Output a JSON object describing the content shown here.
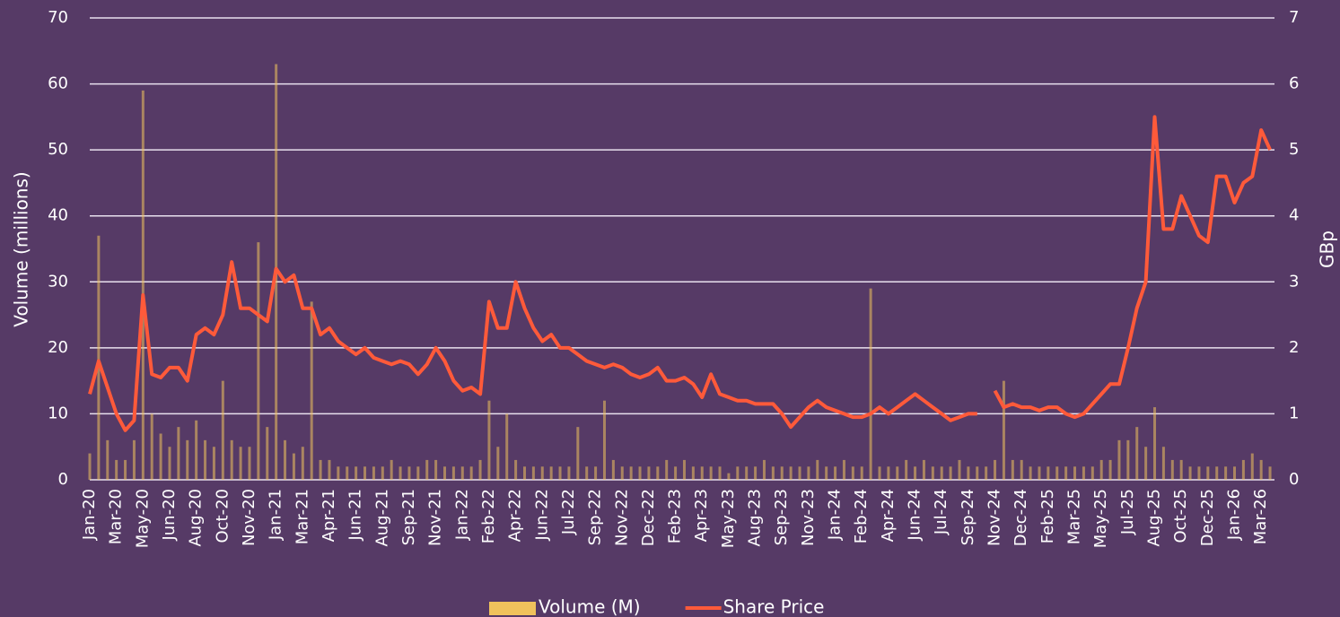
{
  "chart_data": {
    "type": "bar-line",
    "y_label": "Volume (millions)",
    "y2_label": "GBp",
    "categories": [
      "Jan-20",
      null,
      null,
      "Mar-20",
      null,
      null,
      "May-20",
      null,
      null,
      "Jun-20",
      null,
      null,
      "Aug-20",
      null,
      null,
      "Oct-20",
      null,
      null,
      "Nov-20",
      null,
      null,
      "Jan-21",
      null,
      null,
      "Mar-21",
      null,
      null,
      "Apr-21",
      null,
      null,
      "Jun-21",
      null,
      null,
      "Aug-21",
      null,
      null,
      "Sep-21",
      null,
      null,
      "Nov-21",
      null,
      null,
      "Jan-22",
      null,
      null,
      "Feb-22",
      null,
      null,
      "Apr-22",
      null,
      null,
      "Jun-22",
      null,
      null,
      "Jul-22",
      null,
      null,
      "Sep-22",
      null,
      null,
      "Nov-22",
      null,
      null,
      "Dec-22",
      null,
      null,
      "Feb-23",
      null,
      null,
      "Apr-23",
      null,
      null,
      "May-23",
      null,
      null,
      "Aug-23",
      null,
      null,
      "Sep-23",
      null,
      null,
      "Nov-23",
      null,
      null,
      "Jan-24",
      null,
      null,
      "Feb-24",
      null,
      null,
      "Apr-24",
      null,
      null,
      "Jun-24",
      null,
      null,
      "Jul-24",
      null,
      null,
      "Sep-24",
      null,
      null,
      "Nov-24",
      null,
      null,
      "Dec-24",
      null,
      null,
      "Feb-25",
      null,
      null,
      "Mar-25",
      null,
      null,
      "May-25",
      null,
      null,
      "Jul-25",
      null,
      null,
      "Aug-25",
      null,
      null,
      "Oct-25",
      null,
      null,
      "Dec-25",
      null,
      null,
      "Jan-26",
      null,
      null,
      "Mar-26",
      null
    ],
    "series": [
      {
        "name": "Volume (M)",
        "color": "#f0c25c",
        "kind": "bar",
        "values": [
          4,
          37,
          6,
          3,
          3,
          6,
          59,
          10,
          7,
          5,
          8,
          6,
          9,
          6,
          5,
          15,
          6,
          5,
          5,
          36,
          8,
          63,
          6,
          4,
          5,
          27,
          3,
          3,
          2,
          2,
          2,
          2,
          2,
          2,
          3,
          2,
          2,
          2,
          3,
          3,
          2,
          2,
          2,
          2,
          3,
          12,
          5,
          10,
          3,
          2,
          2,
          2,
          2,
          2,
          2,
          8,
          2,
          2,
          12,
          3,
          2,
          2,
          2,
          2,
          2,
          3,
          2,
          3,
          2,
          2,
          2,
          2,
          1,
          2,
          2,
          2,
          3,
          2,
          2,
          2,
          2,
          2,
          3,
          2,
          2,
          3,
          2,
          2,
          29,
          2,
          2,
          2,
          3,
          2,
          3,
          2,
          2,
          2,
          3,
          2,
          2,
          2,
          3,
          15,
          3,
          3,
          2,
          2,
          2,
          2,
          2,
          2,
          2,
          2,
          3,
          3,
          6,
          6,
          8,
          5,
          11,
          5,
          3,
          3,
          2,
          2,
          2,
          2,
          2,
          2,
          3,
          4,
          3,
          2
        ]
      },
      {
        "name": "Share Price",
        "color": "#ff5a3a",
        "kind": "line",
        "axis": "y2",
        "values": [
          1.3,
          1.8,
          1.4,
          1.0,
          0.75,
          0.9,
          2.8,
          1.6,
          1.55,
          1.7,
          1.7,
          1.5,
          2.2,
          2.3,
          2.2,
          2.5,
          3.3,
          2.6,
          2.6,
          2.5,
          2.4,
          3.2,
          3.0,
          3.1,
          2.6,
          2.6,
          2.2,
          2.3,
          2.1,
          2.0,
          1.9,
          2.0,
          1.85,
          1.8,
          1.75,
          1.8,
          1.75,
          1.6,
          1.75,
          2.0,
          1.8,
          1.5,
          1.35,
          1.4,
          1.3,
          2.7,
          2.3,
          2.3,
          3.0,
          2.6,
          2.3,
          2.1,
          2.2,
          2.0,
          2.0,
          1.9,
          1.8,
          1.75,
          1.7,
          1.75,
          1.7,
          1.6,
          1.55,
          1.6,
          1.7,
          1.5,
          1.5,
          1.55,
          1.45,
          1.25,
          1.6,
          1.3,
          1.25,
          1.2,
          1.2,
          1.15,
          1.15,
          1.15,
          1.0,
          0.8,
          0.95,
          1.1,
          1.2,
          1.1,
          1.05,
          1.0,
          0.95,
          0.95,
          1.0,
          1.1,
          1.0,
          1.1,
          1.2,
          1.3,
          1.2,
          1.1,
          1.0,
          0.9,
          0.95,
          1.0,
          1.0,
          null,
          1.35,
          1.1,
          1.15,
          1.1,
          1.1,
          1.05,
          1.1,
          1.1,
          1.0,
          0.95,
          1.0,
          1.15,
          1.3,
          1.45,
          1.45,
          2.0,
          2.6,
          3.0,
          5.5,
          3.8,
          3.8,
          4.3,
          4.0,
          3.7,
          3.6,
          4.6,
          4.6,
          4.2,
          4.5,
          4.6,
          5.3,
          5.0
        ]
      }
    ],
    "ylim": [
      0,
      70
    ],
    "yticks": [
      0,
      10,
      20,
      30,
      40,
      50,
      60,
      70
    ],
    "y2lim": [
      0,
      7
    ],
    "y2ticks": [
      0,
      1,
      2,
      3,
      4,
      5,
      6,
      7
    ],
    "grid": true,
    "legend": "bottom"
  }
}
